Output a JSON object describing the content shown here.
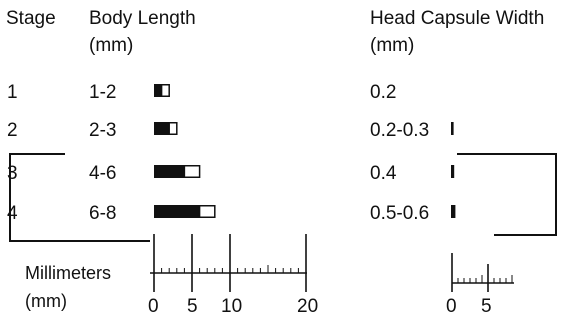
{
  "headers": {
    "stage": "Stage",
    "body_length": "Body Length",
    "body_length_unit": "(mm)",
    "head_width": "Head Capsule Width",
    "head_width_unit": "(mm)"
  },
  "rows": [
    {
      "stage": "1",
      "body_length": "1-2",
      "body_min_mm": 1,
      "body_max_mm": 2,
      "head_width": "0.2",
      "head_min_mm": 0.2,
      "head_max_mm": 0.2
    },
    {
      "stage": "2",
      "body_length": "2-3",
      "body_min_mm": 2,
      "body_max_mm": 3,
      "head_width": "0.2-0.3",
      "head_min_mm": 0.2,
      "head_max_mm": 0.3
    },
    {
      "stage": "3",
      "body_length": "4-6",
      "body_min_mm": 4,
      "body_max_mm": 6,
      "head_width": "0.4",
      "head_min_mm": 0.4,
      "head_max_mm": 0.4
    },
    {
      "stage": "4",
      "body_length": "6-8",
      "body_min_mm": 6,
      "body_max_mm": 8,
      "head_width": "0.5-0.6",
      "head_min_mm": 0.5,
      "head_max_mm": 0.6
    }
  ],
  "body_scale": {
    "label": "Millimeters",
    "unit": "(mm)",
    "ticks": [
      "0",
      "5",
      "10",
      "20"
    ]
  },
  "head_scale": {
    "ticks": [
      "0",
      "5"
    ]
  },
  "colors": {
    "fill": "#111111",
    "outline": "#111111",
    "background": "#ffffff"
  }
}
